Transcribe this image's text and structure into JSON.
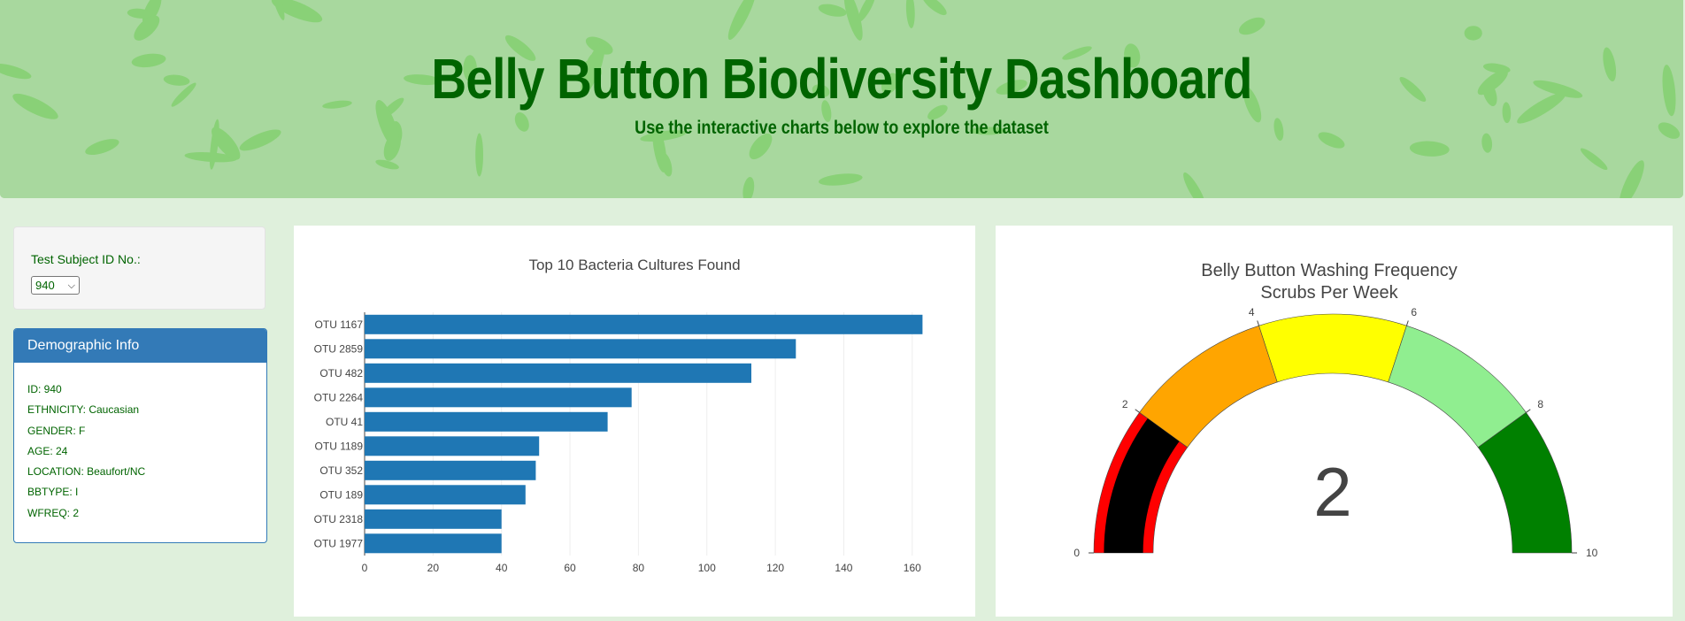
{
  "header": {
    "title": "Belly Button Biodiversity Dashboard",
    "subtitle": "Use the interactive charts below to explore the dataset"
  },
  "selector": {
    "label": "Test Subject ID No.:",
    "selected": "940"
  },
  "demographics": {
    "heading": "Demographic Info",
    "lines": [
      "ID: 940",
      "ETHNICITY: Caucasian",
      "GENDER: F",
      "AGE: 24",
      "LOCATION: Beaufort/NC",
      "BBTYPE: I",
      "WFREQ: 2"
    ]
  },
  "colors": {
    "bar": "#1f77b4",
    "header_text": "#006400",
    "panel_blue": "#337ab7"
  },
  "chart_data": [
    {
      "type": "bar",
      "orientation": "horizontal",
      "title": "Top 10 Bacteria Cultures Found",
      "categories": [
        "OTU 1167",
        "OTU 2859",
        "OTU 482",
        "OTU 2264",
        "OTU 41",
        "OTU 1189",
        "OTU 352",
        "OTU 189",
        "OTU 2318",
        "OTU 1977"
      ],
      "values": [
        163,
        126,
        113,
        78,
        71,
        51,
        50,
        47,
        40,
        40
      ],
      "xlim": [
        0,
        166
      ],
      "xticks": [
        "0",
        "20",
        "40",
        "60",
        "80",
        "100",
        "120",
        "140",
        "160"
      ],
      "grid": true
    },
    {
      "type": "gauge",
      "title": "Belly Button Washing Frequency",
      "subtitle": "Scrubs Per Week",
      "value": 2,
      "value_label": "2",
      "range": [
        0,
        10
      ],
      "ticks": [
        "0",
        "2",
        "4",
        "6",
        "8",
        "10"
      ],
      "steps": [
        {
          "range": [
            0,
            2
          ],
          "color": "red"
        },
        {
          "range": [
            2,
            4
          ],
          "color": "orange"
        },
        {
          "range": [
            4,
            6
          ],
          "color": "yellow"
        },
        {
          "range": [
            6,
            8
          ],
          "color": "lightgreen"
        },
        {
          "range": [
            8,
            10
          ],
          "color": "green"
        }
      ],
      "bar_color": "black"
    }
  ]
}
